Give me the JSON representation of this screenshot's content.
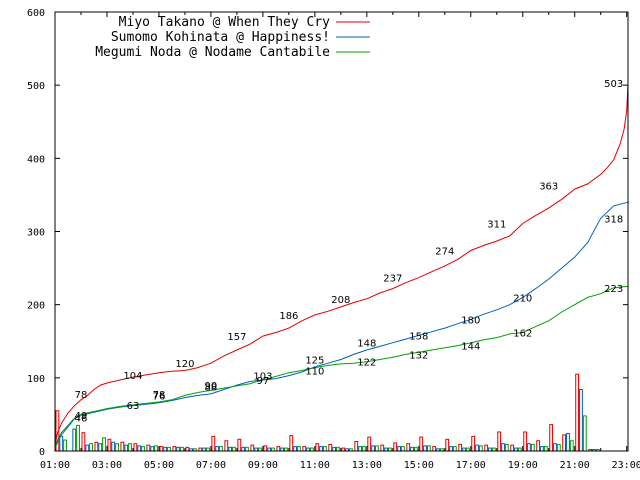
{
  "chart_data": {
    "type": "line",
    "x_labels": [
      "01:00",
      "03:00",
      "05:00",
      "07:00",
      "09:00",
      "11:00",
      "13:00",
      "15:00",
      "17:00",
      "19:00",
      "21:00",
      "23:00"
    ],
    "y_ticks": [
      0,
      100,
      200,
      300,
      400,
      500,
      600
    ],
    "ylim": [
      0,
      600
    ],
    "grid": false,
    "legend_position": "top-left",
    "series": [
      {
        "name": "Miyo Takano @ When They Cry",
        "color": "#e00000",
        "cumulative": [
          [
            0,
            8
          ],
          [
            0.1,
            25
          ],
          [
            0.25,
            38
          ],
          [
            0.5,
            52
          ],
          [
            0.75,
            62
          ],
          [
            1,
            70
          ],
          [
            1.25,
            76
          ],
          [
            1.5,
            84
          ],
          [
            1.75,
            90
          ],
          [
            2,
            93
          ],
          [
            2.5,
            97
          ],
          [
            3,
            101
          ],
          [
            3.5,
            104
          ],
          [
            4,
            107
          ],
          [
            4.5,
            109
          ],
          [
            5,
            110
          ],
          [
            5.5,
            114
          ],
          [
            6,
            120
          ],
          [
            6.5,
            130
          ],
          [
            7,
            138
          ],
          [
            7.5,
            146
          ],
          [
            8,
            157
          ],
          [
            8.5,
            162
          ],
          [
            9,
            168
          ],
          [
            9.5,
            178
          ],
          [
            10,
            186
          ],
          [
            10.5,
            191
          ],
          [
            11,
            197
          ],
          [
            11.5,
            203
          ],
          [
            12,
            208
          ],
          [
            12.5,
            216
          ],
          [
            13,
            222
          ],
          [
            13.5,
            230
          ],
          [
            14,
            237
          ],
          [
            14.5,
            245
          ],
          [
            15,
            253
          ],
          [
            15.5,
            262
          ],
          [
            16,
            274
          ],
          [
            16.5,
            281
          ],
          [
            17,
            287
          ],
          [
            17.5,
            294
          ],
          [
            18,
            311
          ],
          [
            18.5,
            322
          ],
          [
            19,
            332
          ],
          [
            19.5,
            344
          ],
          [
            20,
            358
          ],
          [
            20.5,
            365
          ],
          [
            21,
            378
          ],
          [
            21.25,
            387
          ],
          [
            21.5,
            398
          ],
          [
            21.75,
            420
          ],
          [
            21.9,
            440
          ],
          [
            22,
            465
          ],
          [
            22.05,
            503
          ]
        ],
        "labels": [
          {
            "t": 1,
            "v": 78
          },
          {
            "t": 3,
            "v": 104
          },
          {
            "t": 5,
            "v": 120
          },
          {
            "t": 7,
            "v": 157
          },
          {
            "t": 9,
            "v": 186
          },
          {
            "t": 11,
            "v": 208
          },
          {
            "t": 13,
            "v": 237
          },
          {
            "t": 15,
            "v": 274
          },
          {
            "t": 17,
            "v": 311
          },
          {
            "t": 19,
            "v": 363
          },
          {
            "t": 21.5,
            "v": 503
          }
        ],
        "bars": [
          55,
          0,
          25,
          12,
          16,
          12,
          10,
          8,
          6,
          6,
          5,
          4,
          20,
          14,
          16,
          8,
          7,
          6,
          21,
          6,
          10,
          9,
          4,
          13,
          19,
          8,
          11,
          10,
          19,
          6,
          16,
          9,
          20,
          8,
          26,
          8,
          26,
          14,
          36,
          22,
          105,
          2
        ]
      },
      {
        "name": "Sumomo Kohinata @ Happiness!",
        "color": "#0060c0",
        "cumulative": [
          [
            0,
            5
          ],
          [
            0.1,
            15
          ],
          [
            0.25,
            25
          ],
          [
            0.5,
            35
          ],
          [
            0.75,
            45
          ],
          [
            1,
            49
          ],
          [
            1.5,
            53
          ],
          [
            2,
            57
          ],
          [
            2.5,
            60
          ],
          [
            3,
            62
          ],
          [
            3.5,
            64
          ],
          [
            4,
            66
          ],
          [
            4.5,
            69
          ],
          [
            5,
            73
          ],
          [
            5.5,
            76
          ],
          [
            6,
            78
          ],
          [
            6.5,
            84
          ],
          [
            7,
            90
          ],
          [
            7.5,
            95
          ],
          [
            8,
            97
          ],
          [
            8.5,
            99
          ],
          [
            9,
            103
          ],
          [
            9.5,
            108
          ],
          [
            10,
            115
          ],
          [
            10.5,
            120
          ],
          [
            11,
            125
          ],
          [
            11.5,
            132
          ],
          [
            12,
            138
          ],
          [
            12.5,
            143
          ],
          [
            13,
            148
          ],
          [
            13.5,
            153
          ],
          [
            14,
            158
          ],
          [
            14.5,
            163
          ],
          [
            15,
            168
          ],
          [
            15.5,
            174
          ],
          [
            16,
            180
          ],
          [
            16.5,
            187
          ],
          [
            17,
            193
          ],
          [
            17.5,
            200
          ],
          [
            18,
            210
          ],
          [
            18.5,
            222
          ],
          [
            19,
            235
          ],
          [
            19.5,
            250
          ],
          [
            20,
            265
          ],
          [
            20.5,
            285
          ],
          [
            21,
            318
          ],
          [
            21.5,
            335
          ],
          [
            22.05,
            340
          ]
        ],
        "labels": [
          {
            "t": 1,
            "v": 49
          },
          {
            "t": 4,
            "v": 78
          },
          {
            "t": 6,
            "v": 90
          },
          {
            "t": 8,
            "v": 103
          },
          {
            "t": 10,
            "v": 125
          },
          {
            "t": 12,
            "v": 148
          },
          {
            "t": 14,
            "v": 158
          },
          {
            "t": 16,
            "v": 180
          },
          {
            "t": 18,
            "v": 210
          },
          {
            "t": 21.5,
            "v": 318
          }
        ],
        "bars": [
          20,
          30,
          8,
          10,
          12,
          8,
          7,
          6,
          5,
          5,
          3,
          4,
          6,
          5,
          5,
          4,
          4,
          4,
          6,
          4,
          6,
          5,
          3,
          6,
          7,
          4,
          6,
          5,
          7,
          3,
          6,
          4,
          8,
          4,
          10,
          4,
          10,
          6,
          10,
          24,
          84,
          2
        ]
      },
      {
        "name": "Megumi Noda @ Nodame Cantabile",
        "color": "#00a000",
        "cumulative": [
          [
            0,
            3
          ],
          [
            0.1,
            12
          ],
          [
            0.25,
            22
          ],
          [
            0.5,
            33
          ],
          [
            0.75,
            44
          ],
          [
            1,
            50
          ],
          [
            1.5,
            54
          ],
          [
            2,
            58
          ],
          [
            2.5,
            61
          ],
          [
            3,
            63
          ],
          [
            3.5,
            65
          ],
          [
            4,
            67
          ],
          [
            4.5,
            70
          ],
          [
            5,
            76
          ],
          [
            5.5,
            80
          ],
          [
            6,
            83
          ],
          [
            6.5,
            86
          ],
          [
            7,
            89
          ],
          [
            7.5,
            92
          ],
          [
            8,
            97
          ],
          [
            8.5,
            102
          ],
          [
            9,
            107
          ],
          [
            9.5,
            110
          ],
          [
            10,
            114
          ],
          [
            10.5,
            117
          ],
          [
            11,
            119
          ],
          [
            11.5,
            120
          ],
          [
            12,
            122
          ],
          [
            12.5,
            125
          ],
          [
            13,
            128
          ],
          [
            13.5,
            132
          ],
          [
            14,
            135
          ],
          [
            14.5,
            138
          ],
          [
            15,
            141
          ],
          [
            15.5,
            144
          ],
          [
            16,
            148
          ],
          [
            16.5,
            152
          ],
          [
            17,
            155
          ],
          [
            17.5,
            160
          ],
          [
            18,
            162
          ],
          [
            18.5,
            170
          ],
          [
            19,
            178
          ],
          [
            19.5,
            190
          ],
          [
            20,
            200
          ],
          [
            20.5,
            210
          ],
          [
            21,
            215
          ],
          [
            21.5,
            223
          ],
          [
            22.05,
            225
          ]
        ],
        "labels": [
          {
            "t": 1,
            "v": 46
          },
          {
            "t": 3,
            "v": 63
          },
          {
            "t": 4,
            "v": 76
          },
          {
            "t": 6,
            "v": 88
          },
          {
            "t": 8,
            "v": 97
          },
          {
            "t": 10,
            "v": 110
          },
          {
            "t": 12,
            "v": 122
          },
          {
            "t": 14,
            "v": 132
          },
          {
            "t": 16,
            "v": 144
          },
          {
            "t": 18,
            "v": 162
          },
          {
            "t": 21.5,
            "v": 223
          }
        ],
        "bars": [
          15,
          35,
          10,
          18,
          10,
          10,
          6,
          7,
          5,
          5,
          3,
          4,
          6,
          5,
          5,
          4,
          4,
          4,
          6,
          4,
          6,
          5,
          3,
          6,
          7,
          4,
          6,
          5,
          7,
          3,
          6,
          4,
          7,
          4,
          9,
          4,
          9,
          6,
          9,
          14,
          48,
          2
        ]
      }
    ]
  }
}
